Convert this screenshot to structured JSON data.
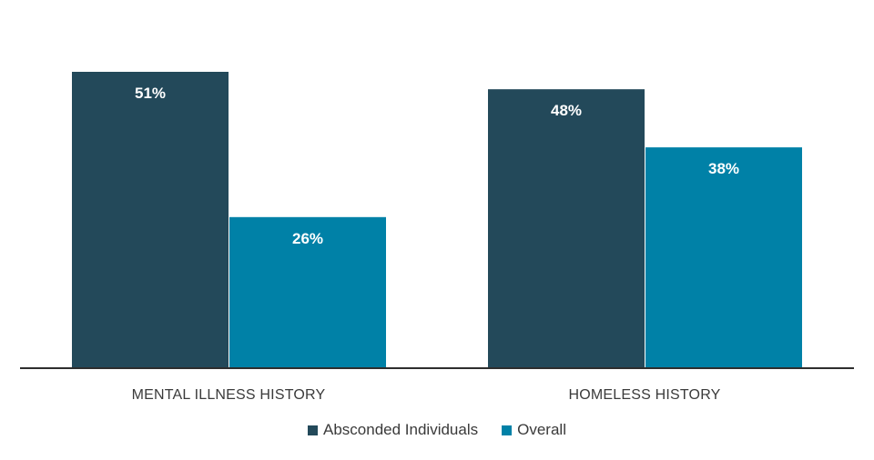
{
  "chart_data": {
    "type": "bar",
    "categories": [
      "MENTAL ILLNESS HISTORY",
      "HOMELESS HISTORY"
    ],
    "series": [
      {
        "name": "Absconded Individuals",
        "values": [
          51,
          48
        ],
        "labels": [
          "51%",
          "48%"
        ],
        "color": "#23495a"
      },
      {
        "name": "Overall",
        "values": [
          26,
          38
        ],
        "labels": [
          "26%",
          "38%"
        ],
        "color": "#0081a7"
      }
    ],
    "ylim": [
      0,
      51
    ],
    "grid": false,
    "legend_position": "bottom"
  }
}
